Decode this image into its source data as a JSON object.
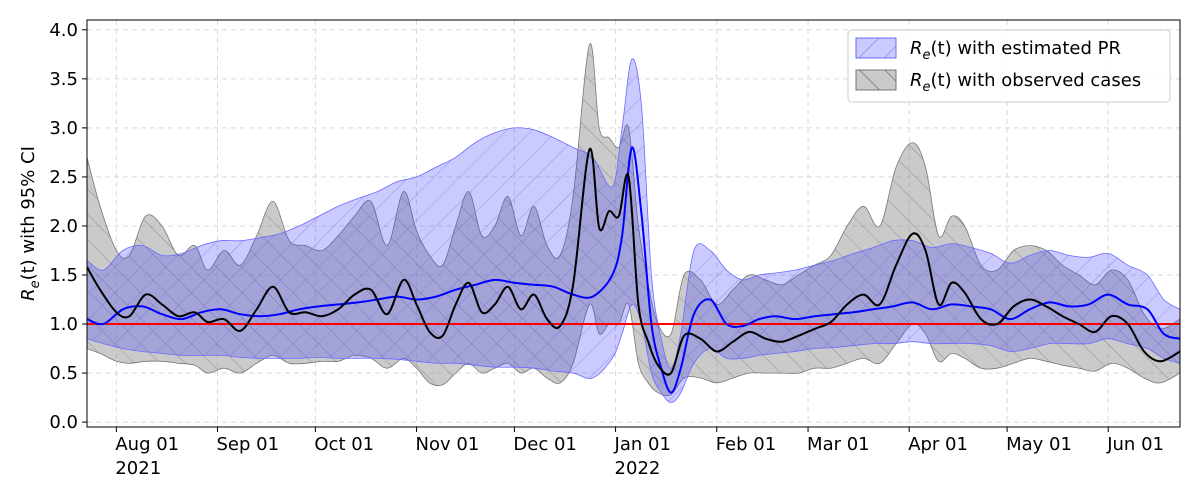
{
  "chart_data": {
    "type": "line",
    "title": "",
    "xlabel": "",
    "ylabel": "R_e(t) with 95% CI",
    "x_range": [
      "2021-07-23",
      "2022-06-23"
    ],
    "ylim": [
      -0.05,
      4.1
    ],
    "yticks": [
      "0.0",
      "0.5",
      "1.0",
      "1.5",
      "2.0",
      "2.5",
      "3.0",
      "3.5",
      "4.0"
    ],
    "xticks": [
      {
        "date": "2021-08-01",
        "label": "Aug 01",
        "year": "2021"
      },
      {
        "date": "2021-09-01",
        "label": "Sep 01",
        "year": ""
      },
      {
        "date": "2021-10-01",
        "label": "Oct 01",
        "year": ""
      },
      {
        "date": "2021-11-01",
        "label": "Nov 01",
        "year": ""
      },
      {
        "date": "2021-12-01",
        "label": "Dec 01",
        "year": ""
      },
      {
        "date": "2022-01-01",
        "label": "Jan 01",
        "year": "2022"
      },
      {
        "date": "2022-02-01",
        "label": "Feb 01",
        "year": ""
      },
      {
        "date": "2022-03-01",
        "label": "Mar 01",
        "year": ""
      },
      {
        "date": "2022-04-01",
        "label": "Apr 01",
        "year": ""
      },
      {
        "date": "2022-05-01",
        "label": "May 01",
        "year": ""
      },
      {
        "date": "2022-06-01",
        "label": "Jun 01",
        "year": ""
      }
    ],
    "grid": true,
    "legend_position": "top-right",
    "reference_line": {
      "y": 1.0,
      "color": "#ff0000"
    },
    "legend": [
      {
        "label_main": "R",
        "label_sub": "e",
        "label_rest": "(t) with estimated PR",
        "color": "#3333ff"
      },
      {
        "label_main": "R",
        "label_sub": "e",
        "label_rest": "(t) with observed cases",
        "color": "#555555"
      }
    ],
    "series": [
      {
        "name": "R_e(t) with observed cases",
        "color": "#000000",
        "x": [
          "2021-07-23",
          "2021-07-27",
          "2021-08-01",
          "2021-08-05",
          "2021-08-10",
          "2021-08-15",
          "2021-08-20",
          "2021-08-25",
          "2021-08-29",
          "2021-09-03",
          "2021-09-08",
          "2021-09-13",
          "2021-09-18",
          "2021-09-23",
          "2021-09-28",
          "2021-10-03",
          "2021-10-08",
          "2021-10-13",
          "2021-10-18",
          "2021-10-23",
          "2021-10-28",
          "2021-11-01",
          "2021-11-05",
          "2021-11-09",
          "2021-11-13",
          "2021-11-17",
          "2021-11-21",
          "2021-11-25",
          "2021-11-29",
          "2021-12-03",
          "2021-12-07",
          "2021-12-11",
          "2021-12-15",
          "2021-12-19",
          "2021-12-24",
          "2021-12-27",
          "2021-12-30",
          "2022-01-02",
          "2022-01-05",
          "2022-01-08",
          "2022-01-11",
          "2022-01-14",
          "2022-01-18",
          "2022-01-22",
          "2022-01-27",
          "2022-02-01",
          "2022-02-06",
          "2022-02-11",
          "2022-02-16",
          "2022-02-21",
          "2022-02-26",
          "2022-03-03",
          "2022-03-08",
          "2022-03-13",
          "2022-03-18",
          "2022-03-23",
          "2022-03-28",
          "2022-04-02",
          "2022-04-06",
          "2022-04-10",
          "2022-04-14",
          "2022-04-18",
          "2022-04-23",
          "2022-04-28",
          "2022-05-03",
          "2022-05-08",
          "2022-05-13",
          "2022-05-18",
          "2022-05-23",
          "2022-05-28",
          "2022-06-02",
          "2022-06-07",
          "2022-06-12",
          "2022-06-17",
          "2022-06-23"
        ],
        "y": [
          1.58,
          1.35,
          1.12,
          1.08,
          1.3,
          1.2,
          1.08,
          1.12,
          1.02,
          1.05,
          0.93,
          1.15,
          1.38,
          1.12,
          1.12,
          1.08,
          1.15,
          1.3,
          1.35,
          1.1,
          1.45,
          1.2,
          0.92,
          0.88,
          1.2,
          1.42,
          1.12,
          1.2,
          1.38,
          1.15,
          1.3,
          1.05,
          0.98,
          1.4,
          2.78,
          1.98,
          2.15,
          2.1,
          2.5,
          1.2,
          0.82,
          0.58,
          0.5,
          0.88,
          0.85,
          0.72,
          0.82,
          0.92,
          0.85,
          0.82,
          0.88,
          0.95,
          1.02,
          1.2,
          1.3,
          1.2,
          1.6,
          1.92,
          1.75,
          1.2,
          1.42,
          1.32,
          1.05,
          1.0,
          1.18,
          1.25,
          1.18,
          1.08,
          1.0,
          0.92,
          1.08,
          1.0,
          0.72,
          0.62,
          0.72
        ],
        "ci_lower": [
          0.75,
          0.7,
          0.62,
          0.6,
          0.62,
          0.62,
          0.6,
          0.58,
          0.5,
          0.55,
          0.5,
          0.6,
          0.68,
          0.6,
          0.6,
          0.62,
          0.62,
          0.68,
          0.65,
          0.55,
          0.65,
          0.55,
          0.4,
          0.38,
          0.5,
          0.6,
          0.5,
          0.55,
          0.6,
          0.5,
          0.55,
          0.45,
          0.4,
          0.6,
          1.2,
          0.9,
          1.0,
          1.0,
          1.2,
          0.6,
          0.4,
          0.3,
          0.28,
          0.45,
          0.45,
          0.4,
          0.45,
          0.5,
          0.5,
          0.5,
          0.5,
          0.55,
          0.55,
          0.6,
          0.65,
          0.6,
          0.8,
          1.0,
          0.9,
          0.62,
          0.7,
          0.65,
          0.55,
          0.55,
          0.6,
          0.65,
          0.62,
          0.58,
          0.55,
          0.52,
          0.6,
          0.55,
          0.45,
          0.4,
          0.5
        ],
        "ci_upper": [
          2.7,
          2.2,
          1.75,
          1.7,
          2.1,
          2.0,
          1.7,
          1.8,
          1.55,
          1.75,
          1.6,
          1.9,
          2.25,
          1.85,
          1.8,
          1.75,
          1.9,
          2.1,
          2.25,
          1.8,
          2.35,
          1.95,
          1.7,
          1.6,
          2.0,
          2.35,
          1.9,
          2.0,
          2.3,
          1.9,
          2.2,
          1.8,
          1.7,
          2.3,
          3.85,
          3.0,
          2.9,
          2.8,
          3.0,
          2.0,
          1.4,
          1.0,
          0.9,
          1.5,
          1.45,
          1.2,
          1.35,
          1.5,
          1.45,
          1.4,
          1.5,
          1.6,
          1.7,
          2.0,
          2.2,
          2.0,
          2.6,
          2.85,
          2.6,
          1.9,
          2.1,
          2.0,
          1.6,
          1.55,
          1.75,
          1.8,
          1.75,
          1.6,
          1.5,
          1.4,
          1.55,
          1.45,
          1.1,
          0.95,
          1.05
        ]
      },
      {
        "name": "R_e(t) with estimated PR",
        "color": "#0000ff",
        "x": [
          "2021-07-23",
          "2021-07-28",
          "2021-08-03",
          "2021-08-09",
          "2021-08-15",
          "2021-08-21",
          "2021-08-27",
          "2021-09-02",
          "2021-09-08",
          "2021-09-14",
          "2021-09-20",
          "2021-09-26",
          "2021-10-02",
          "2021-10-08",
          "2021-10-14",
          "2021-10-20",
          "2021-10-26",
          "2021-11-01",
          "2021-11-07",
          "2021-11-13",
          "2021-11-19",
          "2021-11-25",
          "2021-12-01",
          "2021-12-07",
          "2021-12-13",
          "2021-12-19",
          "2021-12-25",
          "2021-12-31",
          "2022-01-03",
          "2022-01-06",
          "2022-01-09",
          "2022-01-12",
          "2022-01-15",
          "2022-01-18",
          "2022-01-21",
          "2022-01-25",
          "2022-01-30",
          "2022-02-04",
          "2022-02-09",
          "2022-02-14",
          "2022-02-19",
          "2022-02-25",
          "2022-03-03",
          "2022-03-09",
          "2022-03-15",
          "2022-03-21",
          "2022-03-27",
          "2022-04-02",
          "2022-04-08",
          "2022-04-14",
          "2022-04-20",
          "2022-04-26",
          "2022-05-02",
          "2022-05-08",
          "2022-05-14",
          "2022-05-20",
          "2022-05-26",
          "2022-06-01",
          "2022-06-07",
          "2022-06-13",
          "2022-06-18",
          "2022-06-23"
        ],
        "y": [
          1.05,
          1.0,
          1.15,
          1.18,
          1.1,
          1.05,
          1.12,
          1.15,
          1.1,
          1.08,
          1.1,
          1.15,
          1.18,
          1.2,
          1.22,
          1.25,
          1.28,
          1.25,
          1.28,
          1.35,
          1.4,
          1.45,
          1.42,
          1.4,
          1.38,
          1.3,
          1.28,
          1.5,
          1.9,
          2.8,
          2.1,
          1.0,
          0.55,
          0.3,
          0.55,
          1.1,
          1.25,
          1.0,
          0.98,
          1.05,
          1.08,
          1.05,
          1.08,
          1.1,
          1.12,
          1.15,
          1.18,
          1.22,
          1.15,
          1.2,
          1.18,
          1.15,
          1.05,
          1.15,
          1.22,
          1.18,
          1.2,
          1.3,
          1.2,
          1.15,
          0.9,
          0.85
        ],
        "ci_lower": [
          0.85,
          0.8,
          0.75,
          0.72,
          0.7,
          0.68,
          0.68,
          0.68,
          0.66,
          0.65,
          0.65,
          0.65,
          0.66,
          0.65,
          0.65,
          0.65,
          0.64,
          0.62,
          0.6,
          0.6,
          0.58,
          0.56,
          0.56,
          0.55,
          0.52,
          0.5,
          0.45,
          0.65,
          0.9,
          1.2,
          1.0,
          0.5,
          0.3,
          0.2,
          0.3,
          0.6,
          0.75,
          0.65,
          0.65,
          0.68,
          0.7,
          0.72,
          0.75,
          0.76,
          0.78,
          0.8,
          0.8,
          0.82,
          0.8,
          0.8,
          0.8,
          0.78,
          0.72,
          0.75,
          0.8,
          0.8,
          0.8,
          0.85,
          0.8,
          0.75,
          0.65,
          0.6
        ],
        "ci_upper": [
          1.65,
          1.55,
          1.75,
          1.8,
          1.7,
          1.72,
          1.8,
          1.85,
          1.85,
          1.88,
          1.92,
          2.0,
          2.1,
          2.2,
          2.28,
          2.35,
          2.45,
          2.5,
          2.6,
          2.7,
          2.85,
          2.95,
          3.0,
          2.98,
          2.9,
          2.8,
          2.7,
          2.4,
          3.0,
          3.7,
          3.2,
          1.5,
          0.85,
          0.55,
          0.9,
          1.75,
          1.75,
          1.55,
          1.45,
          1.5,
          1.52,
          1.55,
          1.6,
          1.65,
          1.72,
          1.78,
          1.85,
          1.85,
          1.78,
          1.82,
          1.78,
          1.72,
          1.62,
          1.7,
          1.75,
          1.7,
          1.68,
          1.72,
          1.6,
          1.5,
          1.25,
          1.15
        ]
      }
    ]
  }
}
